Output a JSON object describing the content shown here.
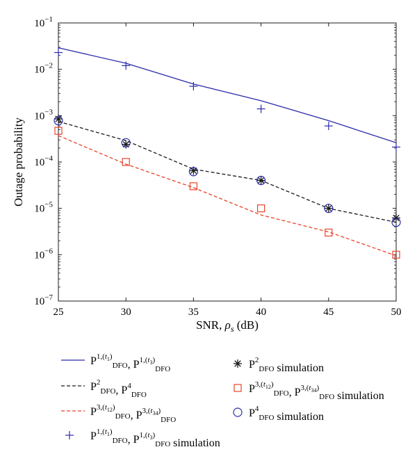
{
  "chart_data": {
    "type": "line",
    "title": "",
    "xlabel": "SNR, ρs (dB)",
    "ylabel": "Outage probability",
    "x_scale": "linear",
    "y_scale": "log",
    "xlim": [
      25,
      50
    ],
    "ylim": [
      1e-07,
      0.1
    ],
    "x_ticks": [
      25,
      30,
      35,
      40,
      45,
      50
    ],
    "x_tick_labels": [
      "25",
      "30",
      "35",
      "40",
      "45",
      "50"
    ],
    "y_ticks": [
      1e-07,
      1e-06,
      1e-05,
      0.0001,
      0.001,
      0.01,
      0.1
    ],
    "y_tick_labels": [
      {
        "base": "10",
        "exp": "−7"
      },
      {
        "base": "10",
        "exp": "−6"
      },
      {
        "base": "10",
        "exp": "−5"
      },
      {
        "base": "10",
        "exp": "−4"
      },
      {
        "base": "10",
        "exp": "−3"
      },
      {
        "base": "10",
        "exp": "−2"
      },
      {
        "base": "10",
        "exp": "−1"
      }
    ],
    "grid": false,
    "legend_position": "below",
    "series": [
      {
        "name": "P_DFO^{1,(t1)}, P_DFO^{1,(t3)}",
        "style": "solid",
        "color": "#2b2ba8",
        "x": [
          25,
          30,
          35,
          40,
          45,
          50
        ],
        "y": [
          0.029,
          0.0135,
          0.0048,
          0.0021,
          0.00078,
          0.00026
        ]
      },
      {
        "name": "P_DFO^2, P_DFO^4",
        "style": "dashed",
        "color": "#1a1a1a",
        "x": [
          25,
          30,
          35,
          40,
          45,
          50
        ],
        "y": [
          0.00075,
          0.00029,
          7e-05,
          4e-05,
          1e-05,
          5e-06
        ]
      },
      {
        "name": "P_DFO^{3,(t12)}, P_DFO^{3,(t34)}",
        "style": "dashed",
        "color": "#e8442b",
        "x": [
          25,
          30,
          35,
          40,
          45,
          50
        ],
        "y": [
          0.00037,
          9e-05,
          2.8e-05,
          7.2e-06,
          3.1e-06,
          9.5e-07
        ]
      },
      {
        "name": "P_DFO^{1,(t1)}, P_DFO^{1,(t3)} simulation",
        "marker": "plus",
        "color": "#2b2ba8",
        "x": [
          25,
          30,
          35,
          40,
          45,
          50
        ],
        "y": [
          0.023,
          0.012,
          0.0043,
          0.0014,
          0.0006,
          0.00021
        ]
      },
      {
        "name": "P_DFO^2 simulation",
        "marker": "asterisk",
        "color": "#1a1a1a",
        "x": [
          25,
          30,
          35,
          40,
          45,
          50
        ],
        "y": [
          0.00085,
          0.00024,
          6.5e-05,
          4e-05,
          1e-05,
          6.2e-06
        ]
      },
      {
        "name": "P_DFO^{3,(t12)}, P_DFO^{3,(t34)} simulation",
        "marker": "square",
        "color": "#e8442b",
        "x": [
          25,
          30,
          35,
          40,
          45,
          50
        ],
        "y": [
          0.00047,
          0.0001,
          3e-05,
          1e-05,
          3e-06,
          1e-06
        ]
      },
      {
        "name": "P_DFO^4 simulation",
        "marker": "circle",
        "color": "#2b2ba8",
        "x": [
          25,
          30,
          35,
          40,
          45,
          50
        ],
        "y": [
          0.00078,
          0.00026,
          6.2e-05,
          4e-05,
          1e-05,
          5e-06
        ]
      }
    ]
  },
  "legend": {
    "items": [
      {
        "series": 0,
        "parts": [
          {
            "t": "P"
          },
          {
            "sup": "1,(",
            "sup_i": "t",
            "sup_sub": "1",
            "sup_end": ")",
            "sub": "DFO"
          },
          {
            "t": ", P"
          },
          {
            "sup": "1,(",
            "sup_i": "t",
            "sup_sub": "3",
            "sup_end": ")",
            "sub": "DFO"
          }
        ]
      },
      {
        "series": 1,
        "parts": [
          {
            "t": "P"
          },
          {
            "sup": "2",
            "sub": "DFO"
          },
          {
            "t": ", P"
          },
          {
            "sup": "4",
            "sub": "DFO"
          }
        ]
      },
      {
        "series": 2,
        "parts": [
          {
            "t": "P"
          },
          {
            "sup": "3,(",
            "sup_i": "t",
            "sup_sub": "12",
            "sup_end": ")",
            "sub": "DFO"
          },
          {
            "t": ", P"
          },
          {
            "sup": "3,(",
            "sup_i": "t",
            "sup_sub": "34",
            "sup_end": ")",
            "sub": "DFO"
          }
        ]
      },
      {
        "series": 3,
        "parts": [
          {
            "t": "P"
          },
          {
            "sup": "1,(",
            "sup_i": "t",
            "sup_sub": "1",
            "sup_end": ")",
            "sub": "DFO"
          },
          {
            "t": ", P"
          },
          {
            "sup": "1,(",
            "sup_i": "t",
            "sup_sub": "3",
            "sup_end": ")",
            "sub": "DFO"
          },
          {
            "t": " simulation"
          }
        ]
      },
      {
        "series": 4,
        "parts": [
          {
            "t": "P"
          },
          {
            "sup": "2",
            "sub": "DFO"
          },
          {
            "t": " simulation"
          }
        ]
      },
      {
        "series": 5,
        "parts": [
          {
            "t": "P"
          },
          {
            "sup": "3,(",
            "sup_i": "t",
            "sup_sub": "12",
            "sup_end": ")",
            "sub": "DFO"
          },
          {
            "t": ", P"
          },
          {
            "sup": "3,(",
            "sup_i": "t",
            "sup_sub": "34",
            "sup_end": ")",
            "sub": "DFO"
          },
          {
            "t": " simulation"
          }
        ]
      },
      {
        "series": 6,
        "parts": [
          {
            "t": "P"
          },
          {
            "sup": "4",
            "sub": "DFO"
          },
          {
            "t": " simulation"
          }
        ]
      }
    ]
  }
}
